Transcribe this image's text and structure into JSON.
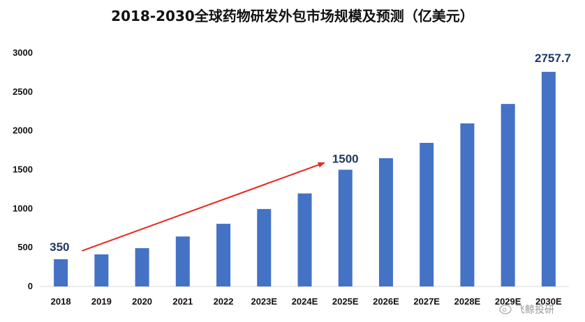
{
  "chart_data": {
    "type": "bar",
    "title": "2018-2030全球药物研发外包市场规模及预测（亿美元）",
    "categories": [
      "2018",
      "2019",
      "2020",
      "2021",
      "2022",
      "2023E",
      "2024E",
      "2025E",
      "2026E",
      "2027E",
      "2028E",
      "2029E",
      "2030E"
    ],
    "values": [
      350,
      412,
      492,
      642,
      805,
      995,
      1195,
      1500,
      1648,
      1845,
      2095,
      2345,
      2757.7
    ],
    "ylim": [
      0,
      3000
    ],
    "yticks": [
      "0",
      "500",
      "1000",
      "1500",
      "2000",
      "2500",
      "3000"
    ],
    "grid": false,
    "bar_color": "#4472c4",
    "annotations": [
      {
        "category": "2018",
        "text": "350"
      },
      {
        "category": "2025E",
        "text": "1500"
      },
      {
        "category": "2030E",
        "text": "2757.7"
      }
    ],
    "trend_arrow": {
      "from": "2019",
      "to": "2025E",
      "color": "#e8271e"
    },
    "annotation_color": "#1f3864"
  },
  "watermark": {
    "text": "飞鲸投研",
    "icon": "weibo-icon"
  }
}
